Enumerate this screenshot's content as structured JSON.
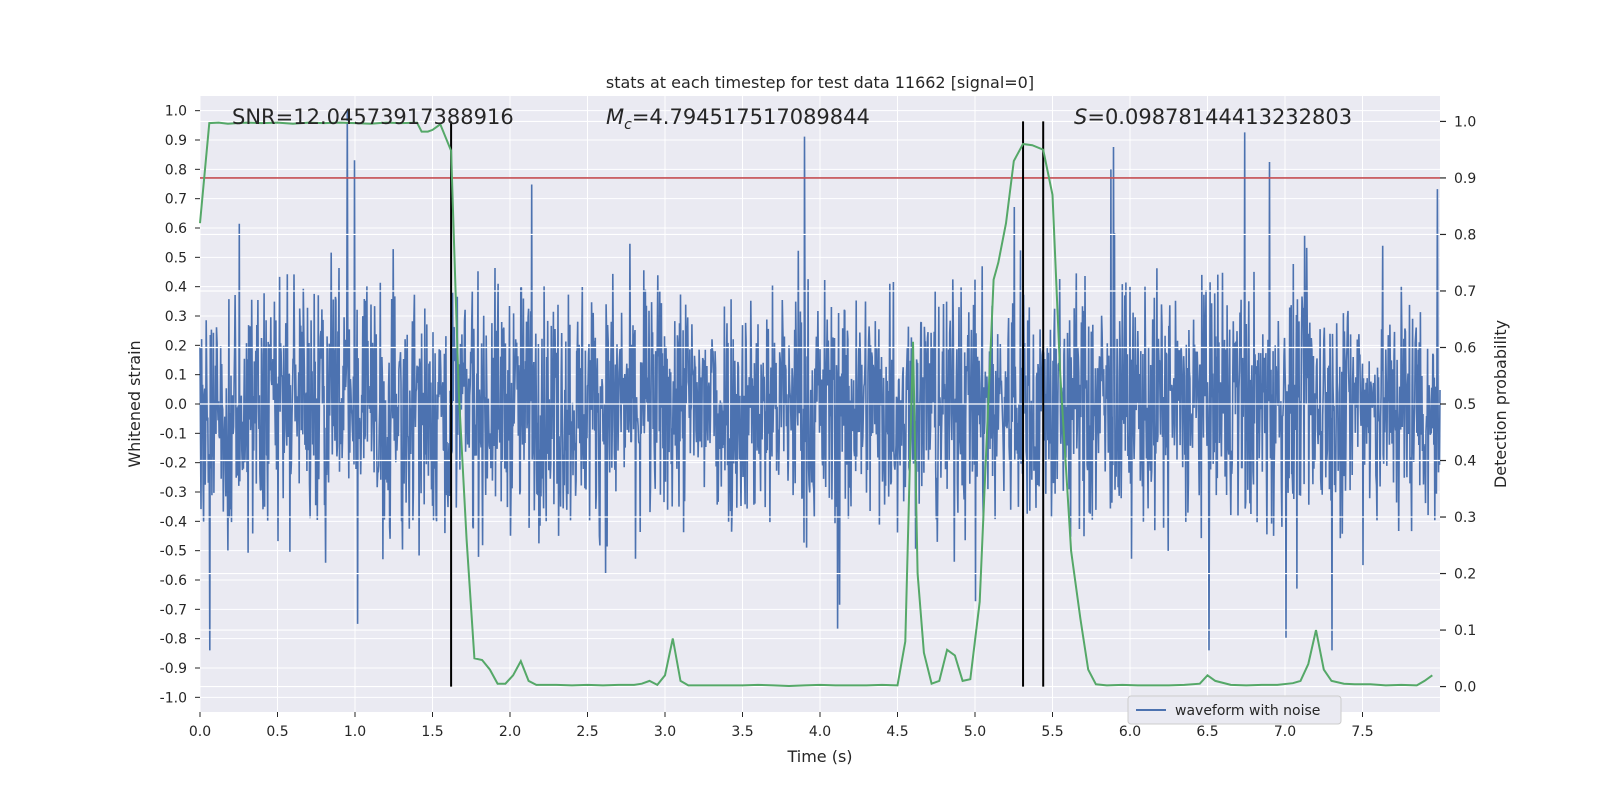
{
  "chart_data": {
    "type": "line",
    "title": "stats at each timestep for test data 11662 [signal=0]",
    "xlabel": "Time (s)",
    "ylabel_left": "Whitened strain",
    "ylabel_right": "Detection probability",
    "xlim": [
      0.0,
      8.0
    ],
    "ylim_left": [
      -1.05,
      1.05
    ],
    "ylim_right": [
      -0.045,
      1.045
    ],
    "x_ticks": [
      "0.0",
      "0.5",
      "1.0",
      "1.5",
      "2.0",
      "2.5",
      "3.0",
      "3.5",
      "4.0",
      "4.5",
      "5.0",
      "5.5",
      "6.0",
      "6.5",
      "7.0",
      "7.5"
    ],
    "y_left_ticks": [
      "-1.0",
      "-0.9",
      "-0.8",
      "-0.7",
      "-0.6",
      "-0.5",
      "-0.4",
      "-0.3",
      "-0.2",
      "-0.1",
      "0.0",
      "0.1",
      "0.2",
      "0.3",
      "0.4",
      "0.5",
      "0.6",
      "0.7",
      "0.8",
      "0.9",
      "1.0"
    ],
    "y_right_ticks": [
      "0.0",
      "0.1",
      "0.2",
      "0.3",
      "0.4",
      "0.5",
      "0.6",
      "0.7",
      "0.8",
      "0.9",
      "1.0"
    ],
    "annotations": {
      "snr": "SNR=12.04573917388916",
      "mc_symbol": "M",
      "mc_sub": "c",
      "mc_value": "=4.794517517089844",
      "s_symbol": "S",
      "s_value": "=0.09878144413232803"
    },
    "threshold": {
      "value": 0.9,
      "axis": "right",
      "color": "#c44e52"
    },
    "vertical_markers": [
      1.62,
      5.31,
      5.44
    ],
    "series": [
      {
        "name": "waveform with noise",
        "color": "#4c72b0",
        "axis": "left",
        "description_range": [
          -0.84,
          1.0
        ],
        "dense_noise": true
      },
      {
        "name": "detection probability",
        "color": "#55a868",
        "axis": "right",
        "x": [
          0.0,
          0.06,
          0.12,
          0.18,
          0.24,
          0.3,
          0.4,
          0.5,
          0.6,
          0.7,
          0.8,
          0.9,
          1.0,
          1.1,
          1.2,
          1.3,
          1.4,
          1.43,
          1.47,
          1.5,
          1.55,
          1.62,
          1.67,
          1.72,
          1.77,
          1.82,
          1.87,
          1.92,
          1.97,
          2.02,
          2.07,
          2.12,
          2.17,
          2.22,
          2.3,
          2.4,
          2.5,
          2.6,
          2.7,
          2.8,
          2.85,
          2.9,
          2.95,
          3.0,
          3.05,
          3.1,
          3.15,
          3.2,
          3.3,
          3.4,
          3.5,
          3.6,
          3.7,
          3.8,
          3.9,
          4.0,
          4.1,
          4.2,
          4.3,
          4.4,
          4.5,
          4.55,
          4.6,
          4.63,
          4.67,
          4.72,
          4.77,
          4.82,
          4.87,
          4.92,
          4.97,
          5.03,
          5.12,
          5.15,
          5.2,
          5.25,
          5.31,
          5.37,
          5.44,
          5.5,
          5.55,
          5.62,
          5.68,
          5.73,
          5.78,
          5.85,
          5.95,
          6.05,
          6.15,
          6.25,
          6.35,
          6.45,
          6.5,
          6.55,
          6.65,
          6.75,
          6.85,
          6.95,
          7.05,
          7.1,
          7.15,
          7.2,
          7.25,
          7.3,
          7.38,
          7.45,
          7.55,
          7.65,
          7.75,
          7.85,
          7.9,
          7.95
        ],
        "y": [
          0.82,
          0.997,
          0.998,
          0.996,
          0.997,
          0.998,
          0.997,
          0.998,
          0.996,
          0.998,
          0.997,
          0.998,
          0.997,
          0.996,
          0.998,
          0.997,
          0.998,
          0.982,
          0.982,
          0.985,
          0.995,
          0.948,
          0.52,
          0.26,
          0.05,
          0.047,
          0.03,
          0.005,
          0.005,
          0.02,
          0.045,
          0.01,
          0.003,
          0.003,
          0.003,
          0.002,
          0.003,
          0.002,
          0.003,
          0.003,
          0.005,
          0.01,
          0.003,
          0.02,
          0.085,
          0.01,
          0.002,
          0.002,
          0.002,
          0.002,
          0.002,
          0.003,
          0.002,
          0.001,
          0.002,
          0.003,
          0.002,
          0.002,
          0.002,
          0.003,
          0.002,
          0.08,
          0.61,
          0.2,
          0.06,
          0.005,
          0.01,
          0.065,
          0.055,
          0.01,
          0.013,
          0.15,
          0.72,
          0.75,
          0.82,
          0.93,
          0.96,
          0.958,
          0.95,
          0.87,
          0.55,
          0.24,
          0.12,
          0.03,
          0.004,
          0.002,
          0.003,
          0.002,
          0.002,
          0.002,
          0.003,
          0.005,
          0.02,
          0.01,
          0.003,
          0.002,
          0.003,
          0.003,
          0.006,
          0.01,
          0.04,
          0.1,
          0.03,
          0.01,
          0.005,
          0.004,
          0.004,
          0.002,
          0.003,
          0.002,
          0.01,
          0.02
        ]
      }
    ],
    "legend": {
      "label": "waveform with noise",
      "placement": "lower-right"
    }
  }
}
